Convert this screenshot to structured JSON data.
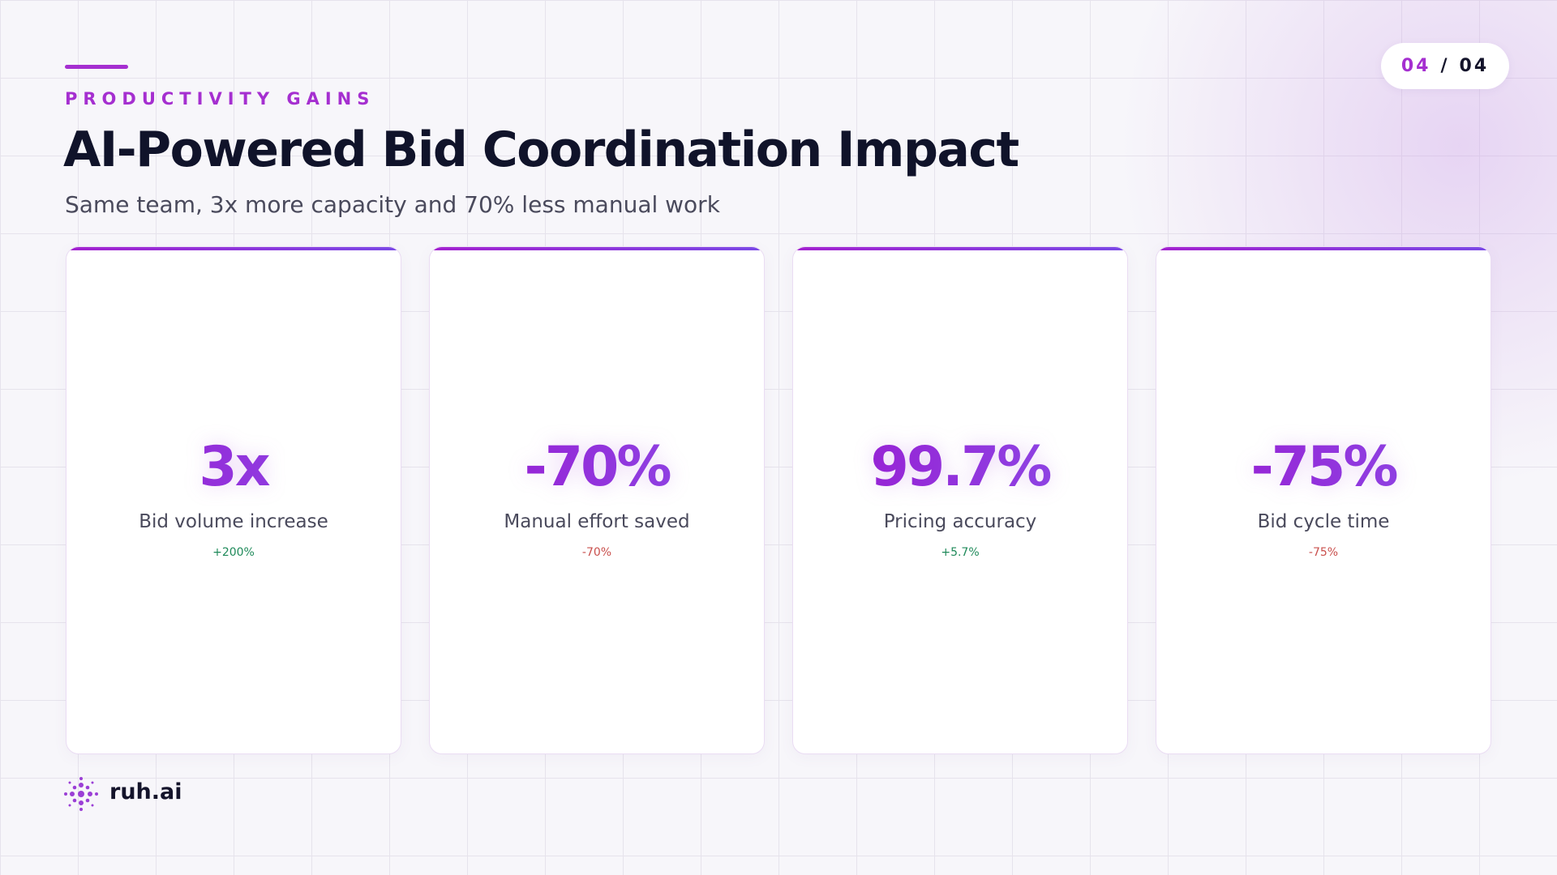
{
  "header": {
    "eyebrow": "PRODUCTIVITY GAINS",
    "title": "AI-Powered Bid Coordination Impact",
    "subtitle": "Same team, 3x more capacity and 70% less manual work"
  },
  "page_indicator": {
    "current": "04",
    "separator": "/",
    "total": "04"
  },
  "cards": [
    {
      "value": "3x",
      "label": "Bid volume increase",
      "change": "+200%",
      "trend": "up"
    },
    {
      "value": "-70%",
      "label": "Manual effort saved",
      "change": "-70%",
      "trend": "down"
    },
    {
      "value": "99.7%",
      "label": "Pricing accuracy",
      "change": "+5.7%",
      "trend": "up"
    },
    {
      "value": "-75%",
      "label": "Bid cycle time",
      "change": "-75%",
      "trend": "down"
    }
  ],
  "footer": {
    "brand": "ruh.ai"
  }
}
